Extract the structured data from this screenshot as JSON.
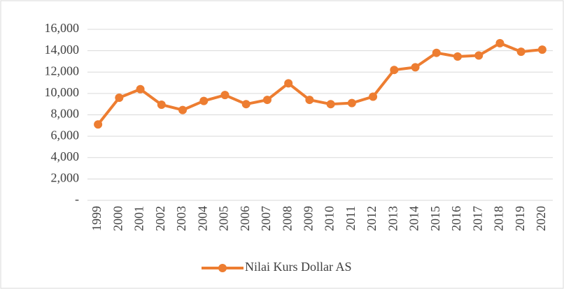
{
  "chart_data": {
    "type": "line",
    "categories": [
      "1999",
      "2000",
      "2001",
      "2002",
      "2003",
      "2004",
      "2005",
      "2006",
      "2007",
      "2008",
      "2009",
      "2010",
      "2011",
      "2012",
      "2013",
      "2014",
      "2015",
      "2016",
      "2017",
      "2018",
      "2019",
      "2020"
    ],
    "series": [
      {
        "name": "Nilai Kurs Dollar AS",
        "color": "#ed7d31",
        "values": [
          7100,
          9600,
          10400,
          8950,
          8450,
          9300,
          9850,
          9000,
          9400,
          10950,
          9400,
          9000,
          9100,
          9700,
          12200,
          12450,
          13800,
          13450,
          13550,
          14700,
          13900,
          14100
        ]
      }
    ],
    "ylim": [
      0,
      16000
    ],
    "yticks": [
      {
        "value": 0,
        "label": "-"
      },
      {
        "value": 2000,
        "label": "2,000"
      },
      {
        "value": 4000,
        "label": "4,000"
      },
      {
        "value": 6000,
        "label": "6,000"
      },
      {
        "value": 8000,
        "label": "8,000"
      },
      {
        "value": 10000,
        "label": "10,000"
      },
      {
        "value": 12000,
        "label": "12,000"
      },
      {
        "value": 14000,
        "label": "14,000"
      },
      {
        "value": 16000,
        "label": "16,000"
      }
    ],
    "grid": true,
    "legend": "bottom"
  }
}
